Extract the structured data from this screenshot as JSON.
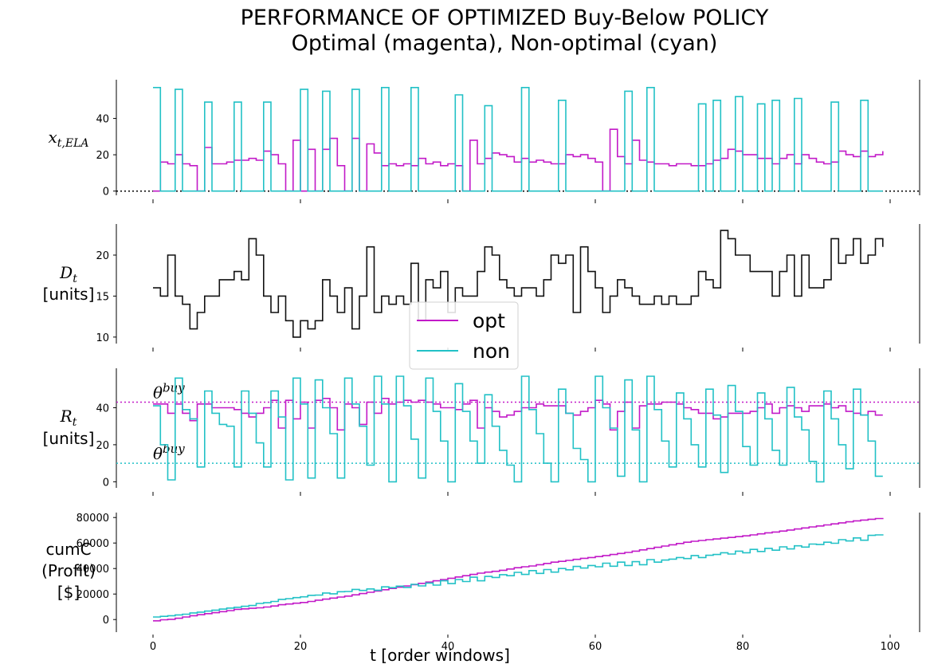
{
  "chart_data": {
    "type": "line",
    "title": "PERFORMANCE OF OPTIMIZED Buy-Below POLICY",
    "subtitle": "Optimal (magenta), Non-optimal (cyan)",
    "xlabel": "t [order windows]",
    "xlim": [
      -5,
      104
    ],
    "x_ticks": [
      0,
      20,
      40,
      60,
      80,
      100
    ],
    "colors": {
      "opt": "#c21ac8",
      "non": "#22c1c6",
      "demand": "#111111"
    },
    "legend": {
      "entries": [
        "opt",
        "non"
      ],
      "position": "center"
    },
    "panels": [
      {
        "id": "x",
        "ylabel": "x_t,ELA",
        "ylim": [
          -1,
          60
        ],
        "y_ticks": [
          0,
          20,
          40
        ],
        "reference_line": {
          "y": 0,
          "color": "#000000"
        },
        "series": [
          {
            "name": "opt",
            "values": [
              0,
              16,
              15,
              20,
              15,
              14,
              0,
              24,
              15,
              15,
              16,
              17,
              17,
              18,
              17,
              22,
              20,
              15,
              0,
              28,
              0,
              23,
              0,
              23,
              29,
              14,
              0,
              29,
              0,
              26,
              21,
              14,
              15,
              14,
              15,
              14,
              18,
              15,
              16,
              14,
              15,
              14,
              0,
              28,
              15,
              18,
              21,
              20,
              19,
              16,
              18,
              16,
              17,
              16,
              15,
              15,
              20,
              19,
              20,
              18,
              16,
              0,
              34,
              19,
              15,
              28,
              17,
              16,
              15,
              15,
              14,
              15,
              15,
              14,
              14,
              15,
              17,
              18,
              23,
              22,
              20,
              20,
              18,
              18,
              15,
              18,
              20,
              15,
              20,
              18,
              16,
              15,
              16,
              22,
              20,
              19,
              22,
              19,
              20,
              22
            ]
          },
          {
            "name": "non",
            "values": [
              57,
              0,
              0,
              56,
              0,
              0,
              0,
              49,
              0,
              0,
              0,
              49,
              0,
              0,
              0,
              49,
              0,
              0,
              0,
              0,
              56,
              0,
              0,
              55,
              0,
              0,
              0,
              56,
              0,
              0,
              0,
              57,
              0,
              0,
              0,
              57,
              0,
              0,
              0,
              0,
              0,
              53,
              0,
              0,
              0,
              47,
              0,
              0,
              0,
              0,
              57,
              0,
              0,
              0,
              0,
              50,
              0,
              0,
              0,
              0,
              0,
              0,
              0,
              0,
              55,
              0,
              0,
              57,
              0,
              0,
              0,
              0,
              0,
              0,
              48,
              0,
              50,
              0,
              0,
              52,
              0,
              0,
              48,
              0,
              50,
              0,
              0,
              51,
              0,
              0,
              0,
              0,
              49,
              0,
              0,
              0,
              50,
              0,
              0,
              0
            ]
          }
        ]
      },
      {
        "id": "D",
        "ylabel": "D_t",
        "ylabel2": "[units]",
        "ylim": [
          9.5,
          23.5
        ],
        "y_ticks": [
          10,
          15,
          20
        ],
        "series": [
          {
            "name": "D",
            "values": [
              16,
              15,
              20,
              15,
              14,
              11,
              13,
              15,
              15,
              17,
              17,
              18,
              17,
              22,
              20,
              15,
              13,
              15,
              12,
              10,
              12,
              11,
              12,
              17,
              15,
              13,
              16,
              11,
              15,
              21,
              13,
              15,
              14,
              15,
              14,
              19,
              12,
              17,
              16,
              18,
              13,
              16,
              15,
              15,
              18,
              21,
              20,
              17,
              16,
              15,
              16,
              16,
              15,
              17,
              20,
              19,
              20,
              13,
              21,
              18,
              16,
              13,
              15,
              17,
              16,
              15,
              14,
              14,
              15,
              14,
              15,
              14,
              14,
              15,
              18,
              17,
              16,
              23,
              22,
              20,
              20,
              18,
              18,
              18,
              15,
              18,
              20,
              15,
              20,
              16,
              16,
              17,
              22,
              19,
              20,
              22,
              19,
              20,
              22,
              21
            ]
          }
        ]
      },
      {
        "id": "R",
        "ylabel": "R_t",
        "ylabel2": "[units]",
        "ylim": [
          -2,
          60
        ],
        "y_ticks": [
          0,
          20,
          40
        ],
        "thresholds": [
          {
            "series": "opt",
            "label": "θbuy",
            "value": 43
          },
          {
            "series": "non",
            "label": "θbuy",
            "value": 10
          }
        ],
        "series": [
          {
            "name": "opt",
            "values": [
              42,
              42,
              37,
              42,
              37,
              33,
              42,
              42,
              40,
              40,
              40,
              39,
              37,
              35,
              37,
              40,
              44,
              29,
              44,
              34,
              43,
              29,
              44,
              45,
              40,
              28,
              42,
              40,
              31,
              43,
              37,
              45,
              42,
              43,
              44,
              43,
              44,
              43,
              42,
              40,
              40,
              39,
              42,
              44,
              29,
              40,
              38,
              35,
              36,
              38,
              40,
              40,
              42,
              41,
              41,
              41,
              37,
              36,
              38,
              40,
              44,
              42,
              28,
              38,
              43,
              29,
              41,
              42,
              42,
              43,
              43,
              42,
              40,
              39,
              37,
              37,
              34,
              35,
              37,
              37,
              37,
              38,
              40,
              42,
              37,
              40,
              41,
              40,
              38,
              41,
              41,
              42,
              40,
              41,
              38,
              37,
              36,
              38,
              36,
              36
            ]
          },
          {
            "name": "non",
            "values": [
              41,
              20,
              1,
              56,
              39,
              34,
              8,
              49,
              37,
              31,
              30,
              8,
              49,
              37,
              21,
              8,
              49,
              35,
              1,
              56,
              42,
              2,
              55,
              40,
              26,
              2,
              56,
              42,
              30,
              9,
              57,
              42,
              0,
              57,
              41,
              23,
              2,
              56,
              38,
              22,
              0,
              53,
              38,
              22,
              10,
              47,
              30,
              17,
              9,
              0,
              57,
              39,
              26,
              10,
              0,
              50,
              37,
              18,
              12,
              0,
              57,
              40,
              29,
              3,
              55,
              28,
              0,
              57,
              39,
              22,
              8,
              48,
              34,
              20,
              8,
              50,
              36,
              5,
              52,
              38,
              19,
              9,
              48,
              34,
              17,
              9,
              51,
              35,
              28,
              11,
              0,
              49,
              34,
              20,
              7,
              50,
              36,
              22,
              3,
              3
            ]
          }
        ]
      },
      {
        "id": "cumC",
        "ylabel": "cumC",
        "ylabel2": "(Profit)",
        "ylabel3": "[$]",
        "ylim": [
          -8000,
          82000
        ],
        "y_ticks": [
          0,
          20000,
          40000,
          60000,
          80000
        ],
        "series": [
          {
            "name": "opt",
            "values": [
              -1000,
              -200,
              200,
              1000,
              2000,
              3000,
              3800,
              4600,
              5400,
              6200,
              7000,
              8000,
              8400,
              8800,
              9200,
              9800,
              10600,
              11600,
              12200,
              12800,
              13400,
              14200,
              15200,
              16000,
              16800,
              17600,
              18400,
              19400,
              20400,
              21400,
              22400,
              23400,
              24400,
              25400,
              26400,
              27400,
              28400,
              29400,
              30400,
              31400,
              32400,
              33400,
              34400,
              35400,
              36400,
              37200,
              37800,
              38600,
              39600,
              40600,
              41400,
              42000,
              43000,
              44000,
              45000,
              45600,
              46400,
              47200,
              48000,
              48600,
              49400,
              50200,
              51000,
              51800,
              52600,
              53600,
              54600,
              55600,
              56600,
              57600,
              58600,
              59600,
              60600,
              61400,
              62000,
              62600,
              63200,
              63800,
              64400,
              65000,
              65600,
              66400,
              67200,
              68000,
              68600,
              69400,
              70200,
              71000,
              71800,
              72600,
              73400,
              74200,
              75000,
              75800,
              76600,
              77400,
              78000,
              78600,
              79200,
              79600
            ]
          },
          {
            "name": "non",
            "values": [
              2000,
              2500,
              3000,
              3600,
              4200,
              5200,
              5800,
              6600,
              7400,
              8200,
              9000,
              9600,
              10400,
              11000,
              12600,
              13200,
              14200,
              15800,
              16400,
              17200,
              17800,
              19000,
              19200,
              20800,
              20200,
              21800,
              22000,
              23600,
              22800,
              24000,
              23000,
              25600,
              25000,
              26200,
              25200,
              27600,
              26400,
              28600,
              27000,
              30400,
              28200,
              31400,
              29800,
              33200,
              30400,
              33800,
              33000,
              35200,
              34400,
              37000,
              35400,
              38400,
              36200,
              39200,
              37200,
              40000,
              39000,
              41600,
              40400,
              42400,
              41400,
              44200,
              41800,
              45000,
              42400,
              45400,
              43000,
              47000,
              45000,
              46600,
              47400,
              48600,
              47800,
              50200,
              48600,
              50400,
              51000,
              52400,
              51400,
              53600,
              52400,
              55000,
              53400,
              55800,
              54400,
              57000,
              55400,
              57800,
              56800,
              59200,
              58800,
              60600,
              59800,
              62600,
              61600,
              64000,
              62200,
              66000,
              66400,
              66800
            ]
          }
        ]
      }
    ]
  }
}
